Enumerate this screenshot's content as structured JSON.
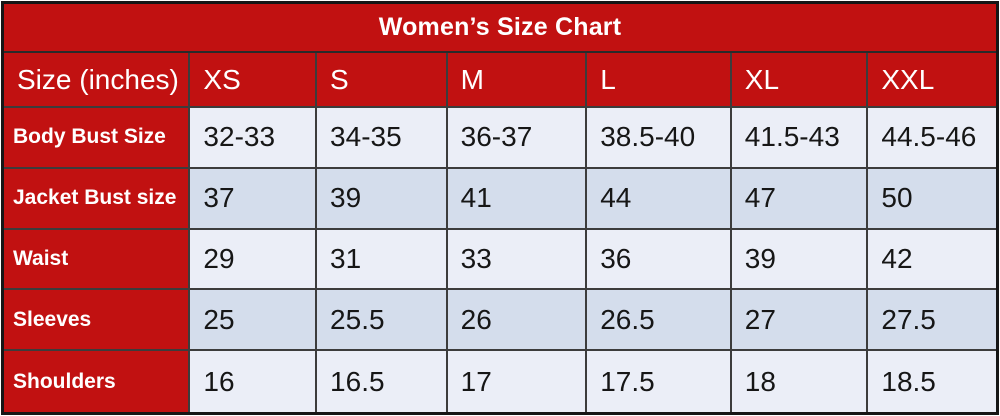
{
  "title": "Women’s Size Chart",
  "header": {
    "cells": [
      "Size (inches)",
      "XS",
      "S",
      "M",
      "L",
      "XL",
      "XXL"
    ]
  },
  "rows": [
    {
      "label": "Body Bust Size",
      "values": [
        "32-33",
        "34-35",
        "36-37",
        "38.5-40",
        "41.5-43",
        "44.5-46"
      ]
    },
    {
      "label": "Jacket Bust size",
      "values": [
        "37",
        "39",
        "41",
        "44",
        "47",
        "50"
      ]
    },
    {
      "label": "Waist",
      "values": [
        "29",
        "31",
        "33",
        "36",
        "39",
        "42"
      ]
    },
    {
      "label": "Sleeves",
      "values": [
        "25",
        "25.5",
        "26",
        "26.5",
        "27",
        "27.5"
      ]
    },
    {
      "label": "Shoulders",
      "values": [
        "16",
        "16.5",
        "17",
        "17.5",
        "18",
        "18.5"
      ]
    }
  ],
  "colors": {
    "band_red": "#c11111",
    "row_light": "#ebeef7",
    "row_alt": "#d4ddec",
    "grid_border": "#3c3c3c",
    "outer_border": "#161616",
    "text_light": "#ffffff",
    "text_dark": "#161616"
  },
  "chart_data": {
    "type": "table",
    "title": "Women’s Size Chart",
    "columns": [
      "Size (inches)",
      "XS",
      "S",
      "M",
      "L",
      "XL",
      "XXL"
    ],
    "rows": [
      [
        "Body Bust Size",
        "32-33",
        "34-35",
        "36-37",
        "38.5-40",
        "41.5-43",
        "44.5-46"
      ],
      [
        "Jacket Bust size",
        "37",
        "39",
        "41",
        "44",
        "47",
        "50"
      ],
      [
        "Waist",
        "29",
        "31",
        "33",
        "36",
        "39",
        "42"
      ],
      [
        "Sleeves",
        "25",
        "25.5",
        "26",
        "26.5",
        "27",
        "27.5"
      ],
      [
        "Shoulders",
        "16",
        "16.5",
        "17",
        "17.5",
        "18",
        "18.5"
      ]
    ],
    "layout": {
      "units": "inches",
      "header_style": "red band, white text",
      "body_style": "alternating light blue rows, grid on"
    }
  }
}
